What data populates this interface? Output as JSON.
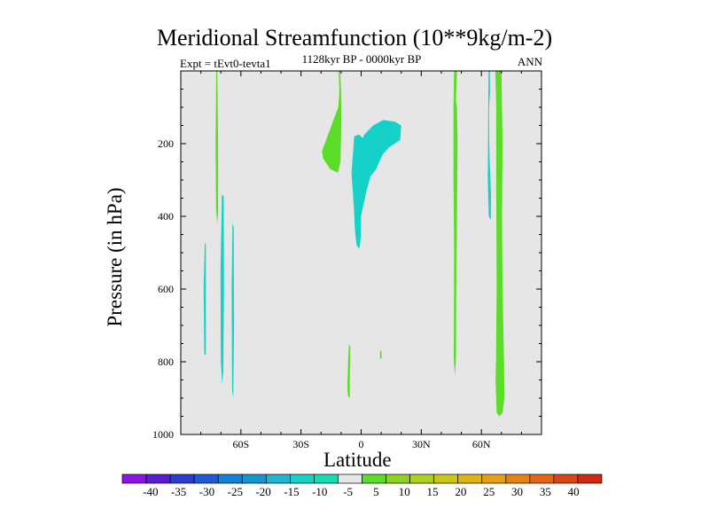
{
  "chart_data": {
    "type": "contour",
    "title": "Meridional Streamfunction (10**9kg/m-2)",
    "left_string": "Expt = tEvt0-tevta1",
    "center_string": "1128kyr BP - 0000kyr BP",
    "right_string": "ANN",
    "xlabel": "Latitude",
    "ylabel": "Pressure (in hPa)",
    "xlim": [
      -90,
      90
    ],
    "ylim": [
      1000,
      0
    ],
    "y_ticks": [
      {
        "value": 200,
        "label": "200"
      },
      {
        "value": 400,
        "label": "400"
      },
      {
        "value": 600,
        "label": "600"
      },
      {
        "value": 800,
        "label": "800"
      },
      {
        "value": 1000,
        "label": "1000"
      }
    ],
    "x_ticks": [
      {
        "value": -60,
        "label": "60S"
      },
      {
        "value": -30,
        "label": "30S"
      },
      {
        "value": 0,
        "label": "0"
      },
      {
        "value": 30,
        "label": "30N"
      },
      {
        "value": 60,
        "label": "60N"
      }
    ],
    "background_color": "#e6e6e6",
    "colorbar": {
      "labels": [
        "-40",
        "-35",
        "-30",
        "-25",
        "-20",
        "-15",
        "-10",
        "-5",
        "5",
        "10",
        "15",
        "20",
        "25",
        "30",
        "35",
        "40"
      ],
      "colors": [
        "#8c14e6",
        "#5a1ed2",
        "#2d3cd2",
        "#1e5ad7",
        "#1482dc",
        "#1496d2",
        "#1eb4d2",
        "#14d2c8",
        "#14dcb4",
        "#e6e6e6",
        "#5adc28",
        "#8cd21e",
        "#aad21e",
        "#c8c814",
        "#dcb414",
        "#e6a014",
        "#e68214",
        "#e66414",
        "#dc4614",
        "#d22814"
      ]
    },
    "regions": [
      {
        "name": "sh-60s-thin-negative",
        "level": "-5 to -10",
        "color": "#14d2c8",
        "points": [
          [
            -78,
            470
          ],
          [
            -77.5,
            480
          ],
          [
            -77.5,
            780
          ],
          [
            -78.3,
            780
          ],
          [
            -78.6,
            600
          ]
        ]
      },
      {
        "name": "sh-68s-column-negative",
        "level": "-5 to -10",
        "color": "#14d2c8",
        "points": [
          [
            -69.5,
            340
          ],
          [
            -68.6,
            345
          ],
          [
            -68.4,
            600
          ],
          [
            -68.8,
            830
          ],
          [
            -69.4,
            860
          ],
          [
            -70,
            800
          ],
          [
            -70.2,
            550
          ]
        ]
      },
      {
        "name": "sh-64s-column-negative",
        "level": "-5 to -10",
        "color": "#14d2c8",
        "points": [
          [
            -64.2,
            420
          ],
          [
            -63.6,
            430
          ],
          [
            -63.4,
            700
          ],
          [
            -63.8,
            900
          ],
          [
            -64.4,
            880
          ],
          [
            -64.6,
            600
          ]
        ]
      },
      {
        "name": "sh-72s-spike-positive",
        "level": "5 to 10",
        "color": "#5adc28",
        "points": [
          [
            -72.3,
            0
          ],
          [
            -71.8,
            0
          ],
          [
            -71.4,
            200
          ],
          [
            -71.4,
            390
          ],
          [
            -71.8,
            420
          ],
          [
            -72.4,
            380
          ],
          [
            -72.6,
            200
          ]
        ]
      },
      {
        "name": "tropical-upper-positive",
        "level": "5 to 10",
        "color": "#5adc28",
        "points": [
          [
            -10.5,
            0
          ],
          [
            -11.2,
            0
          ],
          [
            -10.9,
            60
          ],
          [
            -11.4,
            100
          ],
          [
            -13.5,
            130
          ],
          [
            -16.8,
            180
          ],
          [
            -19.5,
            220
          ],
          [
            -19,
            240
          ],
          [
            -15.5,
            270
          ],
          [
            -11.6,
            280
          ],
          [
            -10.3,
            250
          ],
          [
            -9.9,
            150
          ],
          [
            -10,
            60
          ]
        ]
      },
      {
        "name": "tropical-upper-negative",
        "level": "-5 to -10",
        "color": "#14d2c8",
        "points": [
          [
            -3.5,
            180
          ],
          [
            -1,
            175
          ],
          [
            0.8,
            185
          ],
          [
            1.6,
            175
          ],
          [
            6,
            150
          ],
          [
            11,
            135
          ],
          [
            17,
            140
          ],
          [
            20,
            150
          ],
          [
            19.5,
            190
          ],
          [
            14,
            210
          ],
          [
            11,
            228
          ],
          [
            9,
            250
          ],
          [
            7.5,
            270
          ],
          [
            4.7,
            290
          ],
          [
            2.7,
            330
          ],
          [
            -0.1,
            400
          ],
          [
            -0.2,
            460
          ],
          [
            -0.9,
            490
          ],
          [
            -2.2,
            480
          ],
          [
            -3.1,
            440
          ],
          [
            -3.6,
            380
          ],
          [
            -4.8,
            280
          ],
          [
            -4,
            220
          ]
        ]
      },
      {
        "name": "tropical-lower-positive",
        "level": "5 to 10",
        "color": "#5adc28",
        "points": [
          [
            -6.1,
            750
          ],
          [
            -5.4,
            760
          ],
          [
            -5.7,
            860
          ],
          [
            -5.6,
            900
          ],
          [
            -6.5,
            895
          ],
          [
            -6.9,
            870
          ],
          [
            -6.5,
            800
          ]
        ]
      },
      {
        "name": "tropical-lower-speck-positive",
        "level": "5 to 10",
        "color": "#5adc28",
        "points": [
          [
            9.4,
            770
          ],
          [
            10.1,
            770
          ],
          [
            10.2,
            790
          ],
          [
            9.4,
            792
          ]
        ]
      },
      {
        "name": "nh-45n-column-positive",
        "level": "5 to 10",
        "color": "#5adc28",
        "points": [
          [
            46.4,
            0
          ],
          [
            47.8,
            0
          ],
          [
            47.3,
            80
          ],
          [
            47.8,
            100
          ],
          [
            48.1,
            200
          ],
          [
            47.5,
            600
          ],
          [
            47.3,
            790
          ],
          [
            46.8,
            840
          ],
          [
            46.2,
            790
          ],
          [
            46.4,
            500
          ],
          [
            46.1,
            300
          ],
          [
            46.1,
            100
          ]
        ]
      },
      {
        "name": "nh-63n-spike-negative",
        "level": "-5 to -10",
        "color": "#14d2c8",
        "points": [
          [
            63.6,
            0
          ],
          [
            64.2,
            0
          ],
          [
            64.3,
            60
          ],
          [
            63.8,
            100
          ],
          [
            63.9,
            200
          ],
          [
            64.2,
            260
          ],
          [
            64.8,
            340
          ],
          [
            64.7,
            410
          ],
          [
            63.7,
            400
          ],
          [
            63.2,
            300
          ],
          [
            63.4,
            100
          ]
        ]
      },
      {
        "name": "nh-67n-column-positive",
        "level": "5 to 10",
        "color": "#5adc28",
        "points": [
          [
            67,
            0
          ],
          [
            70,
            0
          ],
          [
            70.6,
            200
          ],
          [
            70.3,
            400
          ],
          [
            70.6,
            600
          ],
          [
            71.3,
            800
          ],
          [
            71.5,
            900
          ],
          [
            70.6,
            940
          ],
          [
            69,
            950
          ],
          [
            67.6,
            940
          ],
          [
            67.1,
            850
          ],
          [
            67.3,
            800
          ],
          [
            67.6,
            600
          ],
          [
            67.4,
            300
          ],
          [
            67.4,
            100
          ]
        ]
      }
    ]
  }
}
